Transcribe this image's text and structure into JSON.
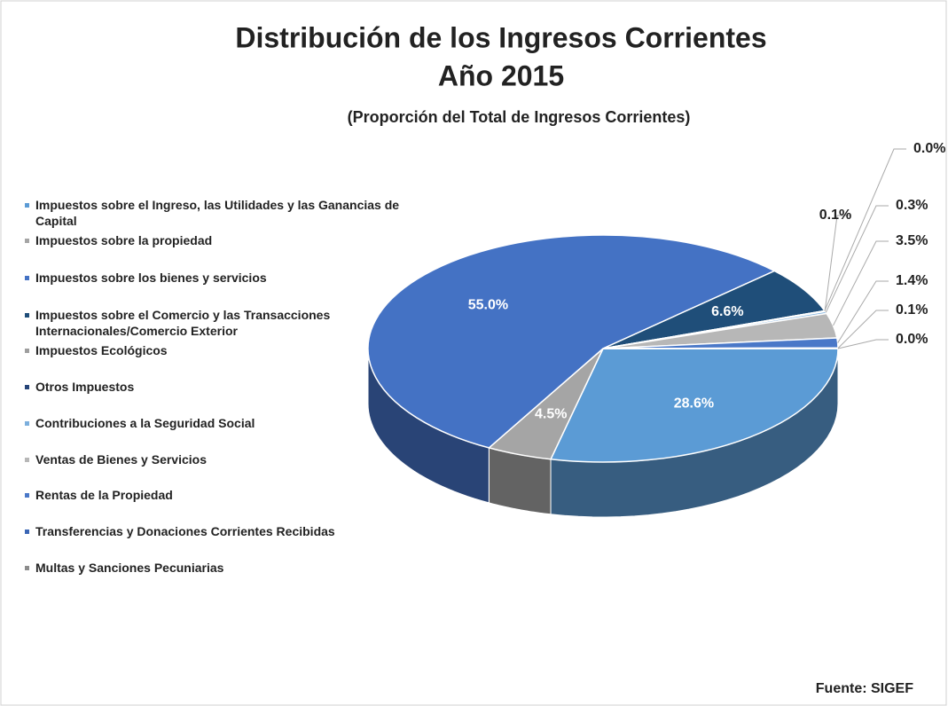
{
  "chart_data": {
    "type": "pie3d",
    "title": [
      "Distribución de los Ingresos Corrientes",
      "Año 2015"
    ],
    "subtitle": "(Proporción del Total de Ingresos Corrientes)",
    "source": "Fuente: SIGEF",
    "categories": [
      "Impuestos sobre el Ingreso, las Utilidades y las Ganancias de Capital",
      "Impuestos sobre la propiedad",
      "Impuestos sobre los bienes y servicios",
      "Impuestos sobre el Comercio y las Transacciones Internacionales/Comercio Exterior",
      "Impuestos Ecológicos",
      "Otros Impuestos",
      "Contribuciones a la Seguridad Social",
      "Ventas de Bienes y Servicios",
      "Rentas de la Propiedad",
      "Transferencias y Donaciones Corrientes Recibidas",
      "Multas y Sanciones Pecuniarias"
    ],
    "values": [
      28.6,
      4.5,
      55.0,
      6.6,
      0.0,
      0.1,
      0.3,
      3.5,
      1.4,
      0.1,
      0.0
    ],
    "value_labels": [
      "28.6%",
      "4.5%",
      "55.0%",
      "6.6%",
      "0.0%",
      "0.1%",
      "0.3%",
      "3.5%",
      "1.4%",
      "0.1%",
      "0.0%"
    ],
    "colors": [
      "#5b9bd5",
      "#a5a5a5",
      "#4472c4",
      "#1f4e79",
      "#9e9e9e",
      "#264478",
      "#7cafdd",
      "#b7b7b7",
      "#4a78c8",
      "#3a66b5",
      "#8c8c8c"
    ],
    "legend": "left"
  }
}
